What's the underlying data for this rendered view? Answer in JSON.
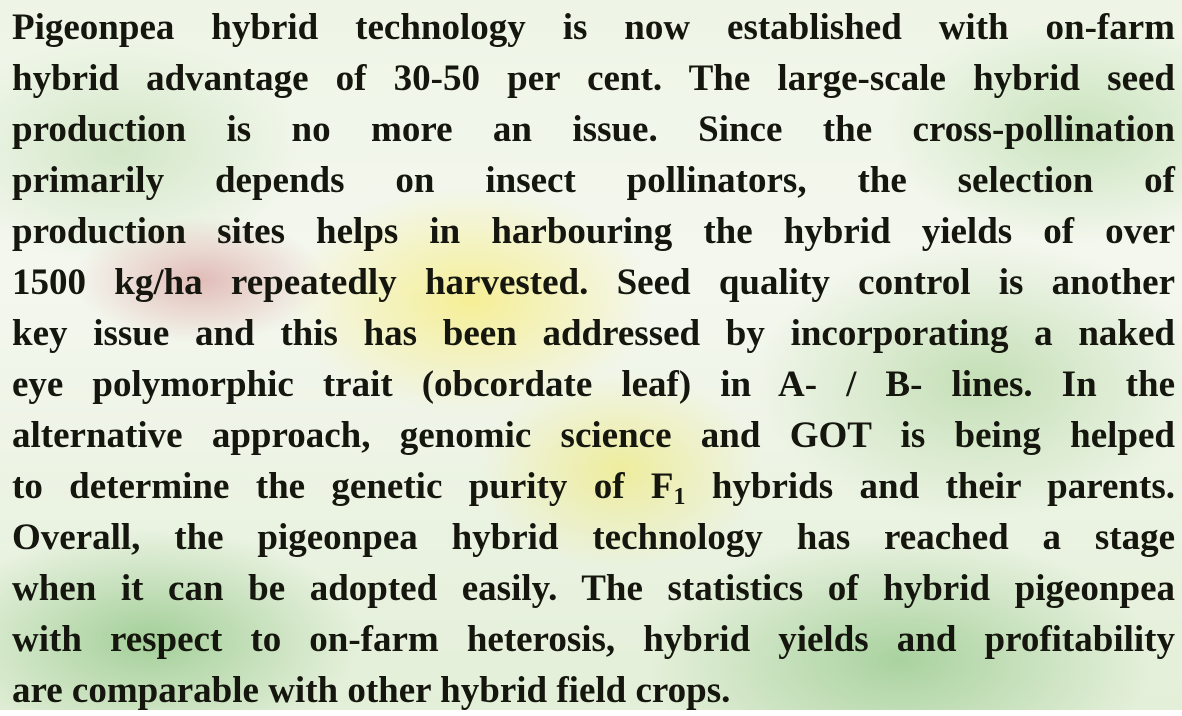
{
  "paragraph": {
    "lines": [
      "Pigeonpea hybrid technology is now established with on-farm",
      "hybrid advantage of 30-50 per cent. The large-scale hybrid seed",
      "production is no more an issue. Since the cross-pollination",
      "primarily depends on insect pollinators, the selection of",
      "production sites helps in harbouring the hybrid yields of over",
      "1500 kg/ha repeatedly harvested. Seed quality control is another",
      "key issue and this has been addressed by incorporating a naked",
      "eye polymorphic trait (obcordate leaf) in A- / B- lines. In the",
      "alternative approach, genomic science and GOT is being helped",
      {
        "before": "to determine the genetic purity of F",
        "subscript": "1",
        "after": " hybrids and their parents."
      },
      "Overall, the pigeonpea hybrid technology has reached a stage",
      "when it can be adopted easily. The statistics of hybrid pigeonpea",
      "with respect to on-farm heterosis, hybrid yields and profitability",
      "are comparable with other hybrid field crops."
    ]
  }
}
